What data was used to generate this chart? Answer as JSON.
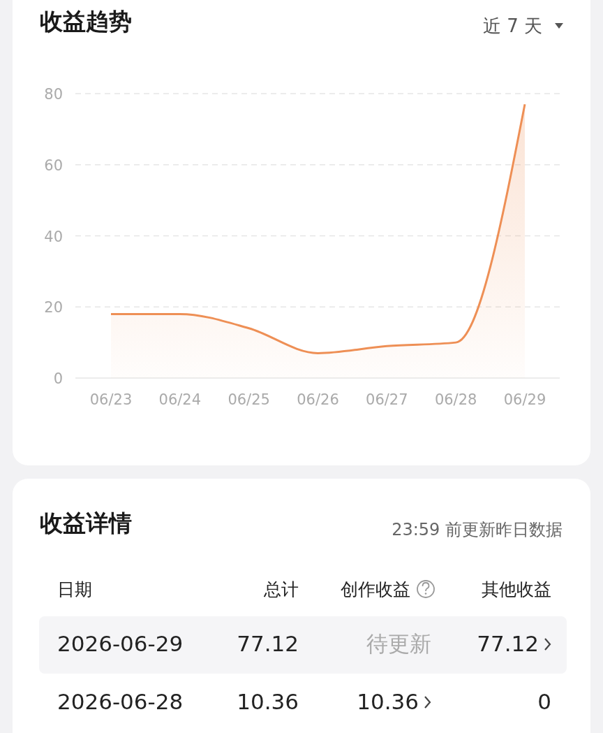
{
  "chart_data": [
    {
      "type": "area",
      "title": "收益趋势",
      "subtitle": "近 7 天",
      "categories": [
        "06/23",
        "06/24",
        "06/25",
        "06/26",
        "06/27",
        "06/28",
        "06/29"
      ],
      "series": [
        {
          "color": "#ee8f55",
          "values": [
            18,
            18,
            14,
            7,
            9,
            10,
            77
          ]
        }
      ],
      "ylim": [
        0,
        80
      ],
      "yticks": [
        0,
        20,
        40,
        60,
        80
      ],
      "grid": "y",
      "marker": "none"
    },
    {
      "type": "other",
      "title": "收益详情",
      "subtitle": "23:59 前更新昨日数据",
      "annotations": [
        "日期",
        "总计",
        "创作收益",
        "其他收益",
        "2026-06-29",
        "77.12",
        "待更新",
        "77.12",
        "2026-06-28",
        "10.36",
        "10.36",
        "0"
      ]
    }
  ]
}
